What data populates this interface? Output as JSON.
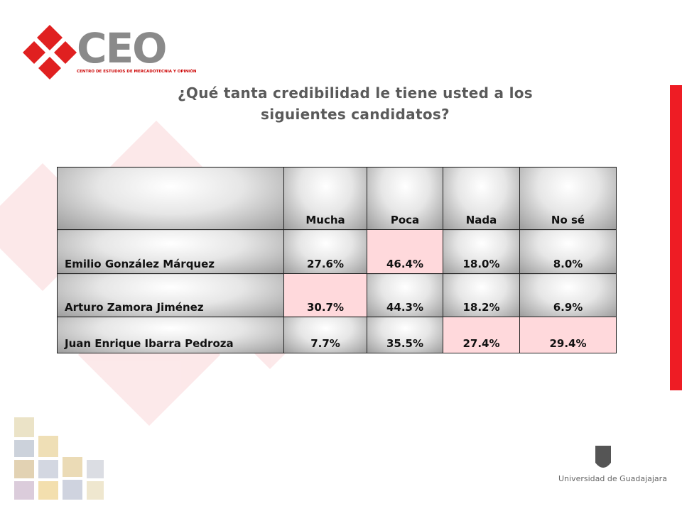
{
  "header": {
    "logo": "CEO",
    "logo_subtitle": "CENTRO DE ESTUDIOS DE MERCADOTECNIA Y OPINIÓN"
  },
  "title": "¿Qué tanta credibilidad le tiene usted a los siguientes candidatos?",
  "table": {
    "columns": [
      "Mucha",
      "Poca",
      "Nada",
      "No sé"
    ],
    "rows": [
      [
        "Emilio González Márquez",
        "27.6%",
        "46.4%",
        "18.0%",
        "8.0%"
      ],
      [
        "Arturo Zamora Jiménez",
        "30.7%",
        "44.3%",
        "18.2%",
        "6.9%"
      ],
      [
        "Juan Enrique Ibarra Pedroza",
        "7.7%",
        "35.5%",
        "27.4%",
        "29.4%"
      ]
    ]
  },
  "footer": {
    "university": "Universidad de Guadajajara"
  }
}
